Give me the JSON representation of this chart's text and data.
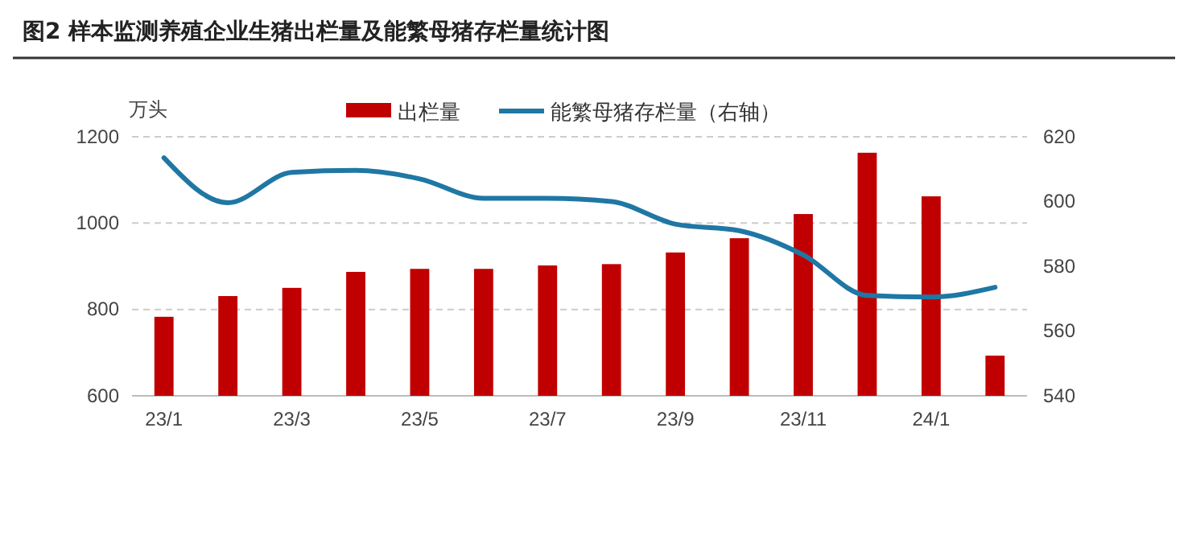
{
  "chart_data": {
    "type": "bar",
    "title": "图2  样本监测养殖企业生猪出栏量及能繁母猪存栏量统计图",
    "ylabel": "万头",
    "categories": [
      "23/1",
      null,
      "23/3",
      null,
      "23/5",
      null,
      "23/7",
      null,
      "23/9",
      null,
      "23/11",
      null,
      "24/1",
      null
    ],
    "series": [
      {
        "name": "出栏量",
        "color": "#c00000",
        "values": [
          783,
          831,
          850,
          887,
          894,
          894,
          902,
          905,
          932,
          965,
          1021,
          1163,
          1062,
          693
        ]
      },
      {
        "name": "能繁母猪存栏量（右轴）",
        "type": "line",
        "axis": "y2",
        "color": "#1f77a4",
        "values": [
          613.5,
          599.6,
          609,
          609.6,
          607,
          601,
          601,
          600,
          593,
          591,
          583.5,
          571,
          570.5,
          573.5
        ]
      }
    ],
    "ylim": [
      600,
      1200
    ],
    "yticks": [
      600,
      800,
      1000,
      1200
    ],
    "y2lim": [
      540,
      620
    ],
    "y2ticks": [
      540,
      560,
      580,
      600,
      620
    ],
    "grid": "y",
    "legend": "top"
  }
}
